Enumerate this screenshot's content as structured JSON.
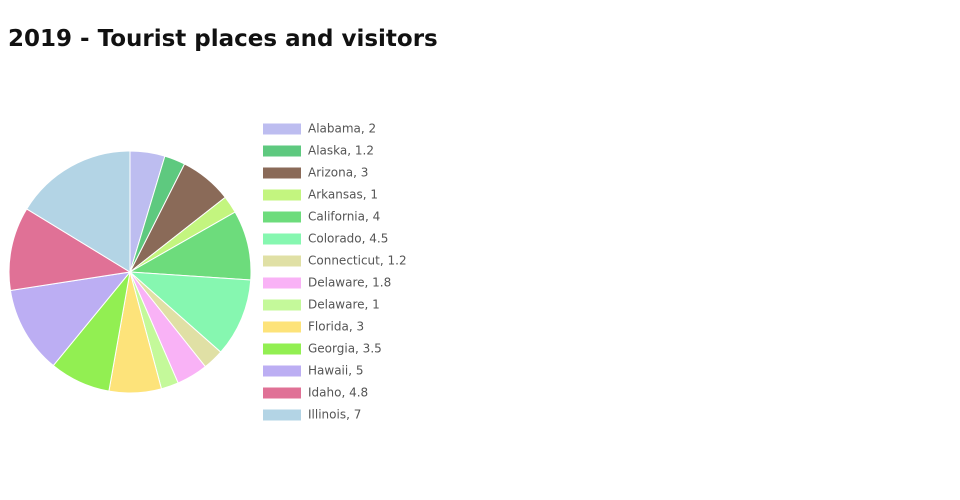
{
  "chart_data": {
    "type": "pie",
    "title": "2019 - Tourist places and visitors",
    "labels": [
      "Alabama, 2",
      "Alaska, 1.2",
      "Arizona, 3",
      "Arkansas, 1",
      "California, 4",
      "Colorado, 4.5",
      "Connecticut, 1.2",
      "Delaware, 1.8",
      "Delaware, 1",
      "Florida, 3",
      "Georgia, 3.5",
      "Hawaii, 5",
      "Idaho, 4.8",
      "Illinois, 7"
    ],
    "values": [
      2,
      1.2,
      3,
      1,
      4,
      4.5,
      1.2,
      1.8,
      1,
      3,
      3.5,
      5,
      4.8,
      7
    ],
    "colors": [
      "#bdbdf0",
      "#5ec97f",
      "#8a6a58",
      "#c3f57f",
      "#6ddc7c",
      "#86f7b0",
      "#e0e0a5",
      "#f9b2f6",
      "#c4f99a",
      "#fde37a",
      "#92ef52",
      "#bcaef3",
      "#e07196",
      "#b3d4e5"
    ],
    "legend": "right"
  }
}
